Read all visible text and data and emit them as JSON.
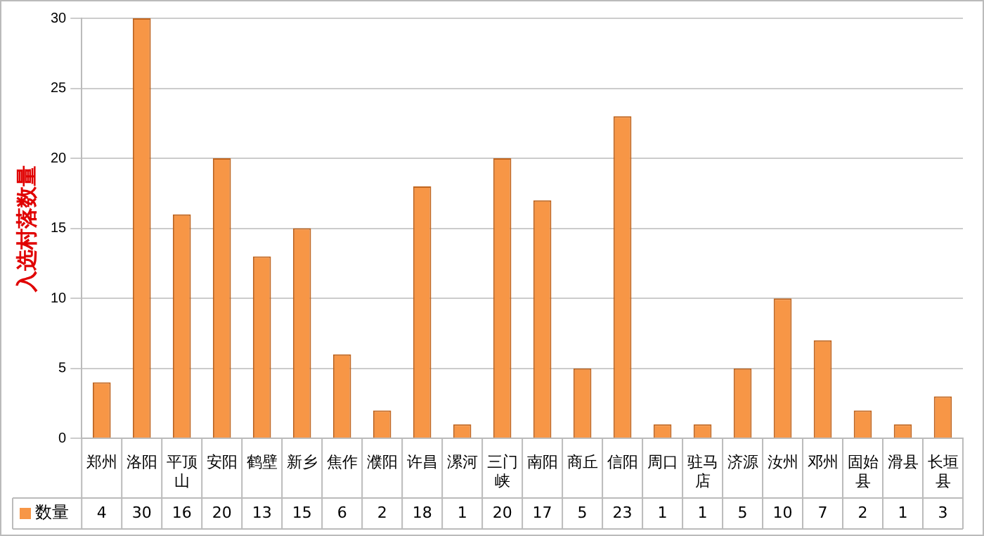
{
  "chart_data": {
    "type": "bar",
    "ylabel": "入选村落数量",
    "categories": [
      "郑州",
      "洛阳",
      "平顶山",
      "安阳",
      "鹤壁",
      "新乡",
      "焦作",
      "濮阳",
      "许昌",
      "漯河",
      "三门峡",
      "南阳",
      "商丘",
      "信阳",
      "周口",
      "驻马店",
      "济源",
      "汝州",
      "邓州",
      "固始县",
      "滑县",
      "长垣县"
    ],
    "series": [
      {
        "name": "数量",
        "color": "#f79646",
        "values": [
          4,
          30,
          16,
          20,
          13,
          15,
          6,
          2,
          18,
          1,
          20,
          17,
          5,
          23,
          1,
          1,
          5,
          10,
          7,
          2,
          1,
          3
        ]
      }
    ],
    "ylim": [
      0,
      30
    ],
    "yticks": [
      0,
      5,
      10,
      15,
      20,
      25,
      30
    ],
    "grid": "y",
    "legend": "bottom left",
    "data_labels": true
  }
}
